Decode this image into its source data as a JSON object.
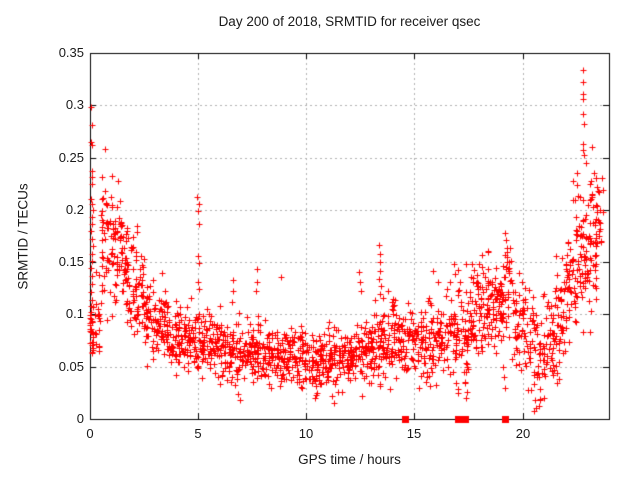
{
  "page": {
    "title": "Day 200 of 2018, SRMTID for receiver qsec"
  },
  "chart_data": {
    "type": "scatter",
    "title": "Day 200 of 2018, SRMTID for receiver qsec",
    "xlabel": "GPS time / hours",
    "ylabel": "SRMTID / TECUs",
    "xlim": [
      0,
      24
    ],
    "ylim": [
      0,
      0.35
    ],
    "xticks": [
      0,
      5,
      10,
      15,
      20
    ],
    "xtick_labels": [
      "0",
      "5",
      "10",
      "15",
      "20"
    ],
    "yticks": [
      0,
      0.05,
      0.1,
      0.15,
      0.2,
      0.25,
      0.3,
      0.35
    ],
    "ytick_labels": [
      "0",
      "0.05",
      "0.1",
      "0.15",
      "0.2",
      "0.25",
      "0.3",
      "0.35"
    ],
    "grid": true,
    "legend": "none",
    "marker": {
      "glyph": "plus",
      "size": 7,
      "color": "#ff0000"
    },
    "colors": {
      "frame": "#000000",
      "grid": "#b2b2b2",
      "background": "#ffffff",
      "text": "#1a1a1a"
    },
    "seed": 20182000,
    "point_bins": [
      [
        0.0,
        0.15,
        26,
        0.08,
        0.015
      ],
      [
        0.15,
        0.5,
        16,
        0.095,
        0.022
      ],
      [
        0.5,
        1.0,
        48,
        0.175,
        0.032
      ],
      [
        1.0,
        1.5,
        52,
        0.163,
        0.028
      ],
      [
        1.5,
        2.0,
        46,
        0.142,
        0.027
      ],
      [
        2.0,
        2.5,
        44,
        0.12,
        0.024
      ],
      [
        2.5,
        3.0,
        44,
        0.101,
        0.02
      ],
      [
        3.0,
        3.5,
        44,
        0.091,
        0.018
      ],
      [
        3.5,
        4.0,
        44,
        0.085,
        0.017
      ],
      [
        4.0,
        4.5,
        42,
        0.079,
        0.016
      ],
      [
        4.5,
        5.0,
        42,
        0.075,
        0.015
      ],
      [
        5.0,
        5.5,
        42,
        0.072,
        0.015
      ],
      [
        5.5,
        6.0,
        42,
        0.07,
        0.014
      ],
      [
        6.0,
        6.5,
        42,
        0.066,
        0.014
      ],
      [
        6.5,
        7.0,
        42,
        0.061,
        0.015
      ],
      [
        7.0,
        7.5,
        42,
        0.064,
        0.014
      ],
      [
        7.5,
        8.0,
        42,
        0.064,
        0.014
      ],
      [
        8.0,
        8.5,
        42,
        0.06,
        0.013
      ],
      [
        8.5,
        9.0,
        42,
        0.06,
        0.013
      ],
      [
        9.0,
        9.5,
        42,
        0.061,
        0.013
      ],
      [
        9.5,
        10.0,
        42,
        0.059,
        0.013
      ],
      [
        10.0,
        10.5,
        42,
        0.055,
        0.014
      ],
      [
        10.5,
        11.0,
        42,
        0.057,
        0.014
      ],
      [
        11.0,
        11.5,
        42,
        0.058,
        0.015
      ],
      [
        11.5,
        12.0,
        42,
        0.061,
        0.014
      ],
      [
        12.0,
        12.5,
        42,
        0.059,
        0.014
      ],
      [
        12.5,
        13.0,
        42,
        0.064,
        0.015
      ],
      [
        13.0,
        13.5,
        42,
        0.069,
        0.018
      ],
      [
        13.5,
        14.0,
        42,
        0.074,
        0.018
      ],
      [
        14.0,
        14.5,
        42,
        0.079,
        0.018
      ],
      [
        14.5,
        15.0,
        40,
        0.07,
        0.016
      ],
      [
        15.0,
        15.5,
        40,
        0.07,
        0.016
      ],
      [
        15.5,
        16.0,
        40,
        0.074,
        0.017
      ],
      [
        16.0,
        16.5,
        40,
        0.079,
        0.018
      ],
      [
        16.5,
        17.0,
        40,
        0.084,
        0.02
      ],
      [
        17.0,
        17.5,
        44,
        0.078,
        0.026
      ],
      [
        17.5,
        18.0,
        44,
        0.098,
        0.022
      ],
      [
        18.0,
        18.5,
        46,
        0.112,
        0.022
      ],
      [
        18.5,
        19.0,
        44,
        0.104,
        0.022
      ],
      [
        19.0,
        19.5,
        44,
        0.115,
        0.026
      ],
      [
        19.5,
        20.0,
        40,
        0.09,
        0.022
      ],
      [
        20.0,
        20.5,
        40,
        0.083,
        0.022
      ],
      [
        20.5,
        21.0,
        40,
        0.06,
        0.022
      ],
      [
        21.0,
        21.5,
        40,
        0.07,
        0.022
      ],
      [
        21.5,
        22.0,
        44,
        0.095,
        0.026
      ],
      [
        22.0,
        22.5,
        50,
        0.128,
        0.03
      ],
      [
        22.5,
        23.0,
        54,
        0.158,
        0.032
      ],
      [
        23.0,
        23.45,
        50,
        0.168,
        0.034
      ],
      [
        23.45,
        23.72,
        14,
        0.19,
        0.026
      ]
    ],
    "outlier_points": [
      [
        0.05,
        0.298
      ],
      [
        0.08,
        0.281
      ],
      [
        0.06,
        0.265
      ],
      [
        0.1,
        0.262
      ],
      [
        0.07,
        0.237
      ],
      [
        0.1,
        0.231
      ],
      [
        0.08,
        0.225
      ],
      [
        0.05,
        0.21
      ],
      [
        0.09,
        0.206
      ],
      [
        0.12,
        0.2
      ],
      [
        0.07,
        0.193
      ],
      [
        0.1,
        0.186
      ],
      [
        0.06,
        0.18
      ],
      [
        0.09,
        0.172
      ],
      [
        0.12,
        0.165
      ],
      [
        0.07,
        0.158
      ],
      [
        0.1,
        0.151
      ],
      [
        0.05,
        0.144
      ],
      [
        0.08,
        0.137
      ],
      [
        0.11,
        0.129
      ],
      [
        0.06,
        0.121
      ],
      [
        0.09,
        0.114
      ],
      [
        0.13,
        0.107
      ],
      [
        0.3,
        0.11
      ],
      [
        0.35,
        0.105
      ],
      [
        4.97,
        0.212
      ],
      [
        5.02,
        0.206
      ],
      [
        5.0,
        0.199
      ],
      [
        5.04,
        0.186
      ],
      [
        4.98,
        0.156
      ],
      [
        5.03,
        0.149
      ],
      [
        5.0,
        0.131
      ],
      [
        5.06,
        0.124
      ],
      [
        6.6,
        0.133
      ],
      [
        6.63,
        0.122
      ],
      [
        6.58,
        0.112
      ],
      [
        7.7,
        0.143
      ],
      [
        7.73,
        0.131
      ],
      [
        7.67,
        0.122
      ],
      [
        8.82,
        0.136
      ],
      [
        12.43,
        0.141
      ],
      [
        12.48,
        0.131
      ],
      [
        12.52,
        0.122
      ],
      [
        13.37,
        0.166
      ],
      [
        13.41,
        0.158
      ],
      [
        13.39,
        0.15
      ],
      [
        13.43,
        0.142
      ],
      [
        13.36,
        0.134
      ],
      [
        13.45,
        0.127
      ],
      [
        13.4,
        0.12
      ],
      [
        13.97,
        0.112
      ],
      [
        14.0,
        0.108
      ],
      [
        14.03,
        0.104
      ],
      [
        13.99,
        0.1
      ],
      [
        14.05,
        0.109
      ],
      [
        14.01,
        0.115
      ],
      [
        15.85,
        0.142
      ],
      [
        16.08,
        0.131
      ],
      [
        16.85,
        0.148
      ],
      [
        16.9,
        0.139
      ],
      [
        19.18,
        0.178
      ],
      [
        19.24,
        0.171
      ],
      [
        19.3,
        0.164
      ],
      [
        19.2,
        0.157
      ],
      [
        19.27,
        0.15
      ],
      [
        19.33,
        0.143
      ],
      [
        19.16,
        0.136
      ],
      [
        19.1,
        0.05
      ],
      [
        19.15,
        0.04
      ],
      [
        19.2,
        0.03
      ],
      [
        17.3,
        0.045
      ],
      [
        17.35,
        0.034
      ],
      [
        17.42,
        0.026
      ],
      [
        17.38,
        0.02
      ],
      [
        11.2,
        0.022
      ],
      [
        11.3,
        0.015
      ],
      [
        11.45,
        0.026
      ],
      [
        6.85,
        0.024
      ],
      [
        6.95,
        0.018
      ],
      [
        12.6,
        0.022
      ],
      [
        20.6,
        0.018
      ],
      [
        20.75,
        0.012
      ],
      [
        21.0,
        0.02
      ],
      [
        22.78,
        0.334
      ],
      [
        22.8,
        0.322
      ],
      [
        22.79,
        0.311
      ],
      [
        22.82,
        0.306
      ],
      [
        22.8,
        0.292
      ],
      [
        22.83,
        0.282
      ],
      [
        22.79,
        0.263
      ],
      [
        22.81,
        0.257
      ],
      [
        22.85,
        0.252
      ],
      [
        22.35,
        0.228
      ],
      [
        22.5,
        0.235
      ],
      [
        23.1,
        0.225
      ],
      [
        23.3,
        0.235
      ],
      [
        23.4,
        0.23
      ],
      [
        23.45,
        0.222
      ],
      [
        23.5,
        0.218
      ],
      [
        23.55,
        0.217
      ],
      [
        23.6,
        0.2
      ]
    ],
    "zero_runs": [
      [
        14.55,
        14.63
      ],
      [
        17.04,
        17.4
      ],
      [
        19.17,
        19.25
      ]
    ]
  }
}
